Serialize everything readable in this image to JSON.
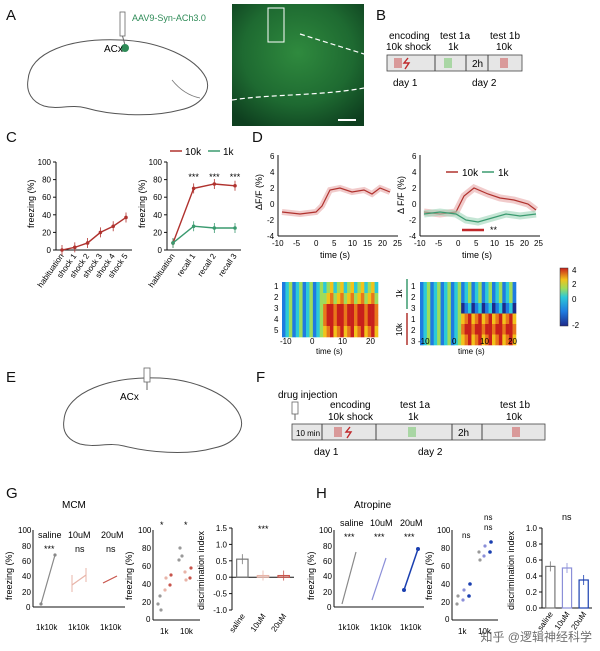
{
  "panels": {
    "A": {
      "letter": "A",
      "virus_label": "AAV9-Syn-ACh3.0",
      "region_label": "ACx",
      "virus_color": "#2e8b57"
    },
    "B": {
      "letter": "B",
      "phases": [
        "encoding\n10k shock",
        "test 1a\n1k",
        "test 1b\n10k"
      ],
      "encoding_label": "encoding",
      "encoding_sub": "10k shock",
      "test1a_label": "test 1a",
      "test1a_sub": "1k",
      "test1b_label": "test 1b",
      "test1b_sub": "10k",
      "interval": "2h",
      "day1": "day 1",
      "day2": "day 2"
    },
    "C": {
      "letter": "C",
      "legend_10k": "10k",
      "legend_1k": "1k",
      "ylabel": "freezing (%)",
      "stars": "***"
    },
    "D": {
      "letter": "D",
      "ylabel": "ΔF/F (%)",
      "ylabel2": "Δ F/F (%)",
      "xlabel": "time (s)",
      "legend_10k": "10k",
      "legend_1k": "1k",
      "sig": "**",
      "heat_1k": "1k",
      "heat_10k": "10k"
    },
    "E": {
      "letter": "E",
      "region_label": "ACx"
    },
    "F": {
      "letter": "F",
      "drug": "drug injection",
      "wait": "10 min",
      "encoding_label": "encoding",
      "encoding_sub": "10k shock",
      "test1a_label": "test 1a",
      "test1a_sub": "1k",
      "test1b_label": "test 1b",
      "test1b_sub": "10k",
      "interval": "2h",
      "day1": "day 1",
      "day2": "day 2"
    },
    "G": {
      "letter": "G",
      "title": "MCM",
      "groups": [
        "saline",
        "10uM",
        "20uM"
      ],
      "sig": [
        "***",
        "ns",
        "ns"
      ],
      "ylabel": "freezing (%)",
      "ylabel_di": "discrimination index",
      "xticks": "1k10k",
      "x1k": "1k",
      "x10k": "10k",
      "di_sig": "***",
      "star": "*"
    },
    "H": {
      "letter": "H",
      "title": "Atropine",
      "groups": [
        "saline",
        "10uM",
        "20uM"
      ],
      "sig": [
        "***",
        "***",
        "***"
      ],
      "ylabel": "freezing (%)",
      "ylabel_di": "discrimination index",
      "xticks": "1k10k",
      "x1k": "1k",
      "x10k": "10k",
      "di_sig": "ns",
      "ns": "ns"
    }
  },
  "chart_data": [
    {
      "id": "C-left",
      "type": "line",
      "categories": [
        "habituation",
        "shock 1",
        "shock 2",
        "shock 3",
        "shock 4",
        "shock 5"
      ],
      "series": [
        {
          "name": "freezing",
          "values": [
            0,
            3,
            8,
            20,
            27,
            37
          ],
          "color": "#b0322e"
        }
      ],
      "ylabel": "freezing (%)",
      "ylim": [
        0,
        100
      ],
      "yticks": [
        0,
        20,
        40,
        60,
        80,
        100
      ]
    },
    {
      "id": "C-right",
      "type": "line",
      "categories": [
        "habituation",
        "recall 1",
        "recall 2",
        "recall 3"
      ],
      "series": [
        {
          "name": "10k",
          "values": [
            8,
            70,
            75,
            73
          ],
          "color": "#b0322e"
        },
        {
          "name": "1k",
          "values": [
            8,
            27,
            25,
            25
          ],
          "color": "#3a9a6f"
        }
      ],
      "stars": [
        "",
        "***",
        "***",
        "***"
      ],
      "ylabel": "freezing (%)",
      "ylim": [
        0,
        100
      ],
      "yticks": [
        0,
        20,
        40,
        60,
        80,
        100
      ]
    },
    {
      "id": "G-di",
      "type": "bar",
      "categories": [
        "saline",
        "10uM",
        "20uM"
      ],
      "values": [
        0.55,
        0.05,
        0.05
      ],
      "ylabel": "discrimination index",
      "ylim": [
        -1.0,
        1.5
      ],
      "yticks": [
        -1.0,
        -0.5,
        0.0,
        0.5,
        1.0,
        1.5
      ]
    },
    {
      "id": "H-di",
      "type": "bar",
      "categories": [
        "saline",
        "10uM",
        "20uM"
      ],
      "values": [
        0.52,
        0.5,
        0.35
      ],
      "ylabel": "discrimination index",
      "ylim": [
        0.0,
        1.0
      ],
      "yticks": [
        0.0,
        0.2,
        0.4,
        0.6,
        0.8,
        1.0
      ]
    }
  ],
  "watermark": "知乎 @逻辑神经科学"
}
